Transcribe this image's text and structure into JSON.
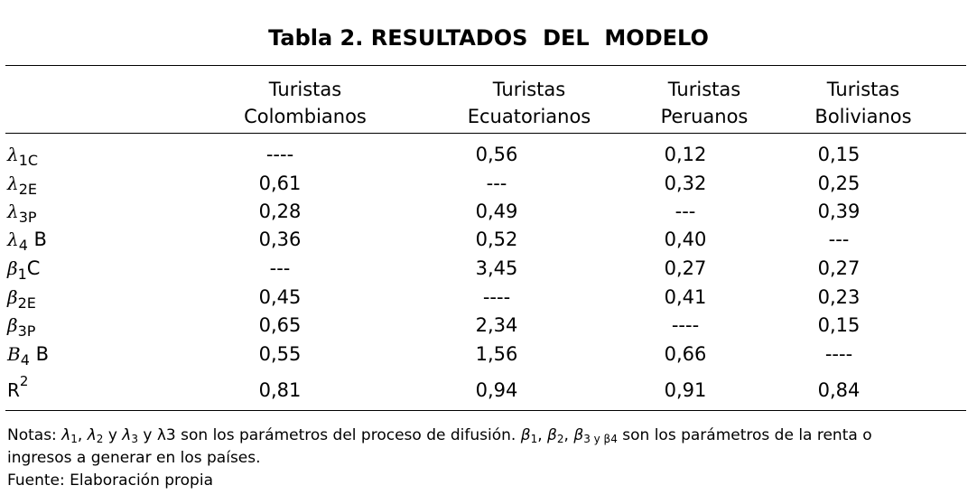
{
  "title": "Tabla 2. RESULTADOS  DEL  MODELO",
  "columns": [
    {
      "line1": "Turistas",
      "line2": "Colombianos"
    },
    {
      "line1": "Turistas",
      "line2": "Ecuatorianos"
    },
    {
      "line1": "Turistas",
      "line2": "Peruanos"
    },
    {
      "line1": "Turistas",
      "line2": "Bolivianos"
    }
  ],
  "rows": [
    {
      "sym": "λ",
      "sub": "1C",
      "sup": "",
      "tail": "",
      "values": [
        "----",
        "0,56",
        "0,12",
        "0,15"
      ]
    },
    {
      "sym": "λ",
      "sub": "2E",
      "sup": "",
      "tail": "",
      "values": [
        "0,61",
        "---",
        "0,32",
        "0,25"
      ]
    },
    {
      "sym": "λ",
      "sub": "3P",
      "sup": "",
      "tail": "",
      "values": [
        "0,28",
        "0,49",
        "---",
        "0,39"
      ]
    },
    {
      "sym": "λ",
      "sub": "4",
      "sup": "",
      "tail": " B",
      "values": [
        "0,36",
        "0,52",
        "0,40",
        "---"
      ]
    },
    {
      "sym": "β",
      "sub": "1",
      "sup": "",
      "tail": "C",
      "values": [
        "---",
        "3,45",
        "0,27",
        "0,27"
      ]
    },
    {
      "sym": "β",
      "sub": "2E",
      "sup": "",
      "tail": "",
      "values": [
        "0,45",
        "----",
        "0,41",
        "0,23"
      ]
    },
    {
      "sym": "β",
      "sub": "3P",
      "sup": "",
      "tail": "",
      "values": [
        "0,65",
        "2,34",
        "----",
        "0,15"
      ]
    },
    {
      "sym": "B",
      "sub": "4",
      "sup": "",
      "tail": " B",
      "values": [
        "0,55",
        "1,56",
        "0,66",
        "----"
      ]
    },
    {
      "sym": "R",
      "sub": "",
      "sup": "2",
      "tail": "",
      "values": [
        "0,81",
        "0,94",
        "0,91",
        "0,84"
      ]
    }
  ],
  "notes": {
    "prefix": "Notas: ",
    "l1": "λ",
    "l1s": "1",
    "comma1": ", ",
    "l2": "λ",
    "l2s": "2",
    "y1": " y ",
    "l3": "λ",
    "l3s": "3",
    "mid": " y λ3 son los parámetros del proceso de difusión. ",
    "b1": "β",
    "b1s": "1",
    "comma2": ", ",
    "b2": "β",
    "b2s": "2",
    "comma3": ", ",
    "b3": "β",
    "b3s": "3 y β4",
    "end1": " son los parámetros de la renta o",
    "line2": "ingresos a generar en los países.",
    "source": "Fuente: Elaboración propia"
  }
}
